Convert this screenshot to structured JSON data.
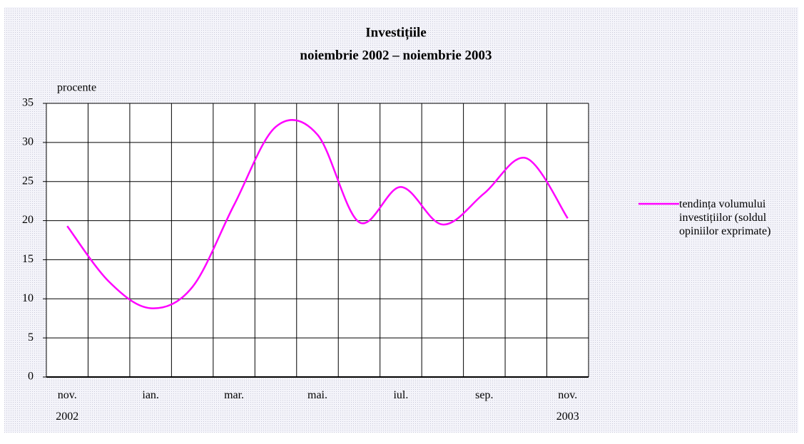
{
  "chart_data": {
    "type": "line",
    "title": [
      "Investițiile",
      "noiembrie 2002 – noiembrie 2003"
    ],
    "y_label": "procente",
    "categories": [
      "nov. 2002",
      null,
      "ian.",
      null,
      "mar.",
      null,
      "mai.",
      null,
      "iul.",
      null,
      "sep.",
      null,
      "nov. 2003"
    ],
    "series": [
      {
        "name": "tendința volumului investițiilor (soldul opiniilor exprimate)",
        "color": "#ff00ff",
        "values": [
          19.3,
          12.2,
          8.8,
          11.5,
          22,
          32,
          31,
          19.8,
          24.3,
          19.5,
          23.5,
          28,
          20.3
        ]
      }
    ],
    "ylim": [
      0,
      35
    ],
    "yticks": [
      0,
      5,
      10,
      15,
      20,
      25,
      30,
      35
    ],
    "grid": true,
    "legend": "right"
  }
}
